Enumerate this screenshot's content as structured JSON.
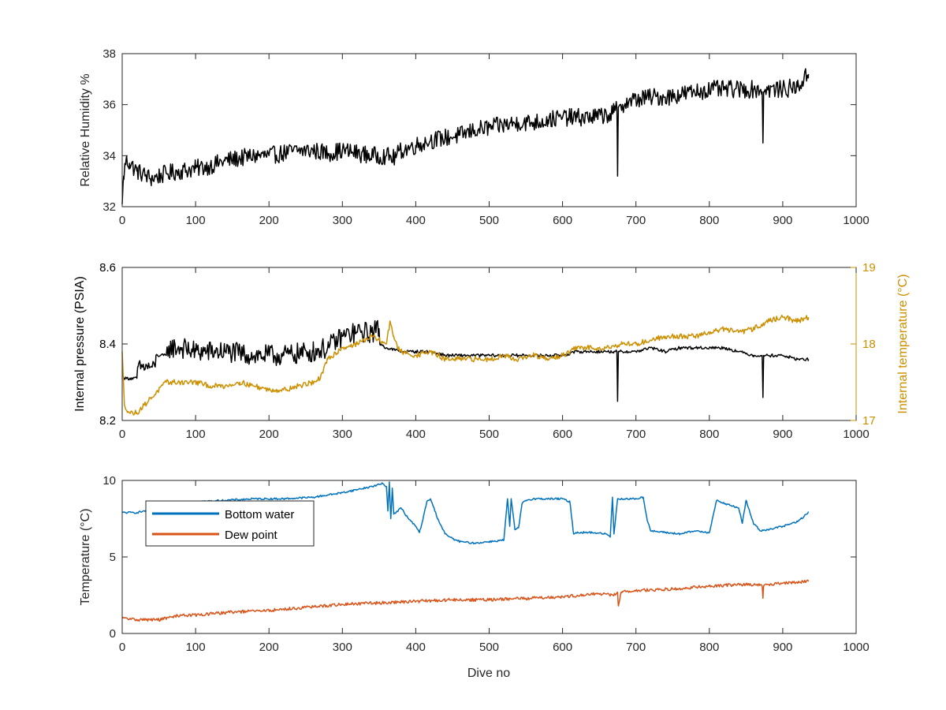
{
  "colors": {
    "black_series": "#000000",
    "gold_series": "#CC8F00",
    "blue_series": "#0072BD",
    "orange_series": "#D95319",
    "axis": "#262626",
    "background": "#ffffff"
  },
  "chart_data": [
    {
      "type": "line",
      "title": "",
      "xlabel": "",
      "ylabel": "Relative Humidity %",
      "xlim": [
        0,
        1000
      ],
      "ylim": [
        32,
        38
      ],
      "xticks": [
        0,
        100,
        200,
        300,
        400,
        500,
        600,
        700,
        800,
        900,
        1000
      ],
      "yticks": [
        32,
        34,
        36,
        38
      ],
      "xtick_labels": [
        "0",
        "100",
        "200",
        "300",
        "400",
        "500",
        "600",
        "700",
        "800",
        "900",
        "1000"
      ],
      "ytick_labels": [
        "32",
        "34",
        "36",
        "38"
      ],
      "grid": false,
      "series": [
        {
          "color": "#000000",
          "noise": 0.35,
          "x": [
            0,
            2,
            5,
            10,
            20,
            40,
            60,
            80,
            100,
            120,
            140,
            160,
            180,
            200,
            220,
            240,
            260,
            280,
            300,
            320,
            340,
            360,
            370,
            380,
            400,
            420,
            440,
            460,
            480,
            500,
            520,
            540,
            560,
            580,
            600,
            620,
            640,
            660,
            670,
            674,
            675,
            676,
            678,
            690,
            700,
            720,
            740,
            760,
            780,
            800,
            820,
            840,
            860,
            870,
            872,
            873,
            874,
            876,
            880,
            900,
            920,
            935
          ],
          "y": [
            32.1,
            33.2,
            33.8,
            33.7,
            33.4,
            33.1,
            33.3,
            33.4,
            33.5,
            33.6,
            33.8,
            33.9,
            34.0,
            34.0,
            34.1,
            34.2,
            34.2,
            34.1,
            34.2,
            34.1,
            34.0,
            34.0,
            33.9,
            34.2,
            34.4,
            34.6,
            34.7,
            34.8,
            35.0,
            35.1,
            35.2,
            35.3,
            35.3,
            35.4,
            35.5,
            35.5,
            35.5,
            35.6,
            35.7,
            35.9,
            33.2,
            35.9,
            36.0,
            36.1,
            36.2,
            36.3,
            36.3,
            36.4,
            36.5,
            36.6,
            36.6,
            36.6,
            36.6,
            36.6,
            36.5,
            34.5,
            36.5,
            36.6,
            36.6,
            36.6,
            36.7,
            37.2
          ]
        }
      ]
    },
    {
      "type": "line",
      "title": "",
      "xlabel": "",
      "ylabel": "Internal pressure (PSIA)",
      "ylabel_right": "Internal temperature (°C)",
      "xlim": [
        0,
        1000
      ],
      "ylim": [
        8.2,
        8.6
      ],
      "ylim_right": [
        17,
        19
      ],
      "xticks": [
        0,
        100,
        200,
        300,
        400,
        500,
        600,
        700,
        800,
        900,
        1000
      ],
      "yticks": [
        8.2,
        8.4,
        8.6
      ],
      "yticks_right": [
        17,
        18,
        19
      ],
      "xtick_labels": [
        "0",
        "100",
        "200",
        "300",
        "400",
        "500",
        "600",
        "700",
        "800",
        "900",
        "1000"
      ],
      "ytick_labels": [
        "8.2",
        "8.4",
        "8.6"
      ],
      "ytick_labels_right": [
        "17",
        "18",
        "19"
      ],
      "grid": false,
      "series": [
        {
          "color": "#000000",
          "axis": "left",
          "noise": 0.004,
          "x": [
            0,
            3,
            8,
            20,
            21,
            45,
            46,
            60,
            61,
            80,
            100,
            140,
            180,
            220,
            260,
            280,
            300,
            320,
            340,
            350,
            351,
            360,
            380,
            400,
            420,
            440,
            460,
            480,
            500,
            520,
            540,
            560,
            580,
            600,
            620,
            640,
            660,
            670,
            674,
            675,
            676,
            678,
            700,
            720,
            740,
            760,
            780,
            800,
            820,
            840,
            860,
            870,
            872,
            873,
            874,
            876,
            880,
            900,
            920,
            935
          ],
          "y": [
            8.32,
            8.31,
            8.31,
            8.31,
            8.34,
            8.34,
            8.37,
            8.37,
            8.39,
            8.39,
            8.38,
            8.38,
            8.37,
            8.37,
            8.38,
            8.39,
            8.42,
            8.43,
            8.43,
            8.44,
            8.4,
            8.39,
            8.38,
            8.38,
            8.38,
            8.37,
            8.37,
            8.37,
            8.37,
            8.37,
            8.37,
            8.37,
            8.37,
            8.37,
            8.38,
            8.38,
            8.38,
            8.38,
            8.38,
            8.25,
            8.38,
            8.38,
            8.38,
            8.39,
            8.38,
            8.39,
            8.39,
            8.39,
            8.39,
            8.38,
            8.37,
            8.37,
            8.37,
            8.26,
            8.37,
            8.37,
            8.37,
            8.37,
            8.36,
            8.36
          ],
          "band": [
            [
              22,
              44,
              0.018
            ],
            [
              62,
              350,
              0.028
            ]
          ]
        },
        {
          "color": "#CC8F00",
          "axis": "right",
          "noise": 0.035,
          "x": [
            0,
            3,
            10,
            20,
            30,
            40,
            50,
            60,
            70,
            80,
            100,
            120,
            140,
            160,
            180,
            200,
            220,
            240,
            260,
            270,
            280,
            300,
            320,
            340,
            360,
            365,
            370,
            375,
            380,
            400,
            420,
            440,
            460,
            480,
            500,
            520,
            540,
            560,
            580,
            600,
            620,
            640,
            660,
            680,
            700,
            720,
            740,
            760,
            780,
            800,
            820,
            840,
            860,
            880,
            900,
            920,
            935
          ],
          "y": [
            17.9,
            17.2,
            17.1,
            17.1,
            17.2,
            17.3,
            17.4,
            17.5,
            17.5,
            17.5,
            17.5,
            17.45,
            17.45,
            17.5,
            17.45,
            17.4,
            17.4,
            17.45,
            17.5,
            17.55,
            17.8,
            17.95,
            18.0,
            18.1,
            18.0,
            18.3,
            18.1,
            17.95,
            17.9,
            17.85,
            17.9,
            17.8,
            17.8,
            17.8,
            17.8,
            17.85,
            17.8,
            17.85,
            17.8,
            17.85,
            17.95,
            17.95,
            17.95,
            18.0,
            18.0,
            18.05,
            18.1,
            18.1,
            18.1,
            18.15,
            18.2,
            18.15,
            18.2,
            18.3,
            18.35,
            18.3,
            18.35
          ]
        }
      ]
    },
    {
      "type": "line",
      "title": "",
      "xlabel": "Dive no",
      "ylabel": "Temperature (°C)",
      "xlim": [
        0,
        1000
      ],
      "ylim": [
        0,
        10
      ],
      "xticks": [
        0,
        100,
        200,
        300,
        400,
        500,
        600,
        700,
        800,
        900,
        1000
      ],
      "yticks": [
        0,
        5,
        10
      ],
      "xtick_labels": [
        "0",
        "100",
        "200",
        "300",
        "400",
        "500",
        "600",
        "700",
        "800",
        "900",
        "1000"
      ],
      "ytick_labels": [
        "0",
        "5",
        "10"
      ],
      "grid": false,
      "legend": {
        "placement": "top-left",
        "entries": [
          "Bottom water",
          "Dew point"
        ]
      },
      "series": [
        {
          "name": "Bottom water",
          "color": "#0072BD",
          "noise": 0.06,
          "x": [
            0,
            20,
            40,
            60,
            100,
            140,
            180,
            220,
            260,
            300,
            320,
            340,
            355,
            360,
            362,
            364,
            366,
            368,
            370,
            380,
            390,
            400,
            405,
            410,
            415,
            420,
            430,
            440,
            450,
            460,
            480,
            500,
            520,
            525,
            528,
            530,
            535,
            540,
            545,
            550,
            560,
            580,
            600,
            610,
            615,
            618,
            620,
            640,
            660,
            665,
            668,
            670,
            675,
            680,
            700,
            710,
            715,
            720,
            740,
            760,
            780,
            800,
            810,
            820,
            840,
            845,
            850,
            860,
            870,
            880,
            900,
            920,
            935
          ],
          "y": [
            7.9,
            7.9,
            8.1,
            8.5,
            8.6,
            8.7,
            8.8,
            8.8,
            8.9,
            9.2,
            9.4,
            9.6,
            9.8,
            9.6,
            8.0,
            9.9,
            7.5,
            9.5,
            7.8,
            8.2,
            7.5,
            7.0,
            6.6,
            7.5,
            8.6,
            8.8,
            7.5,
            6.5,
            6.2,
            6.0,
            5.9,
            6.0,
            6.1,
            8.8,
            7.0,
            8.8,
            6.8,
            6.9,
            8.5,
            8.7,
            8.8,
            8.8,
            8.8,
            8.6,
            6.5,
            6.6,
            6.6,
            6.6,
            6.5,
            6.3,
            8.9,
            6.5,
            8.8,
            8.8,
            8.8,
            8.9,
            7.5,
            6.7,
            6.6,
            6.5,
            6.7,
            6.6,
            8.7,
            8.5,
            8.2,
            7.2,
            8.7,
            7.2,
            6.7,
            6.8,
            7.0,
            7.3,
            7.9
          ]
        },
        {
          "name": "Dew point",
          "color": "#D95319",
          "noise": 0.1,
          "x": [
            0,
            20,
            50,
            80,
            100,
            150,
            200,
            250,
            300,
            350,
            400,
            450,
            500,
            550,
            600,
            650,
            670,
            675,
            676,
            680,
            700,
            750,
            800,
            850,
            870,
            872,
            873,
            874,
            876,
            900,
            935
          ],
          "y": [
            1.0,
            0.9,
            0.9,
            1.2,
            1.2,
            1.4,
            1.5,
            1.7,
            1.9,
            2.0,
            2.1,
            2.2,
            2.2,
            2.3,
            2.4,
            2.6,
            2.5,
            2.7,
            1.8,
            2.7,
            2.8,
            2.9,
            3.1,
            3.2,
            3.2,
            3.1,
            2.3,
            3.1,
            3.2,
            3.3,
            3.4
          ]
        }
      ]
    }
  ]
}
